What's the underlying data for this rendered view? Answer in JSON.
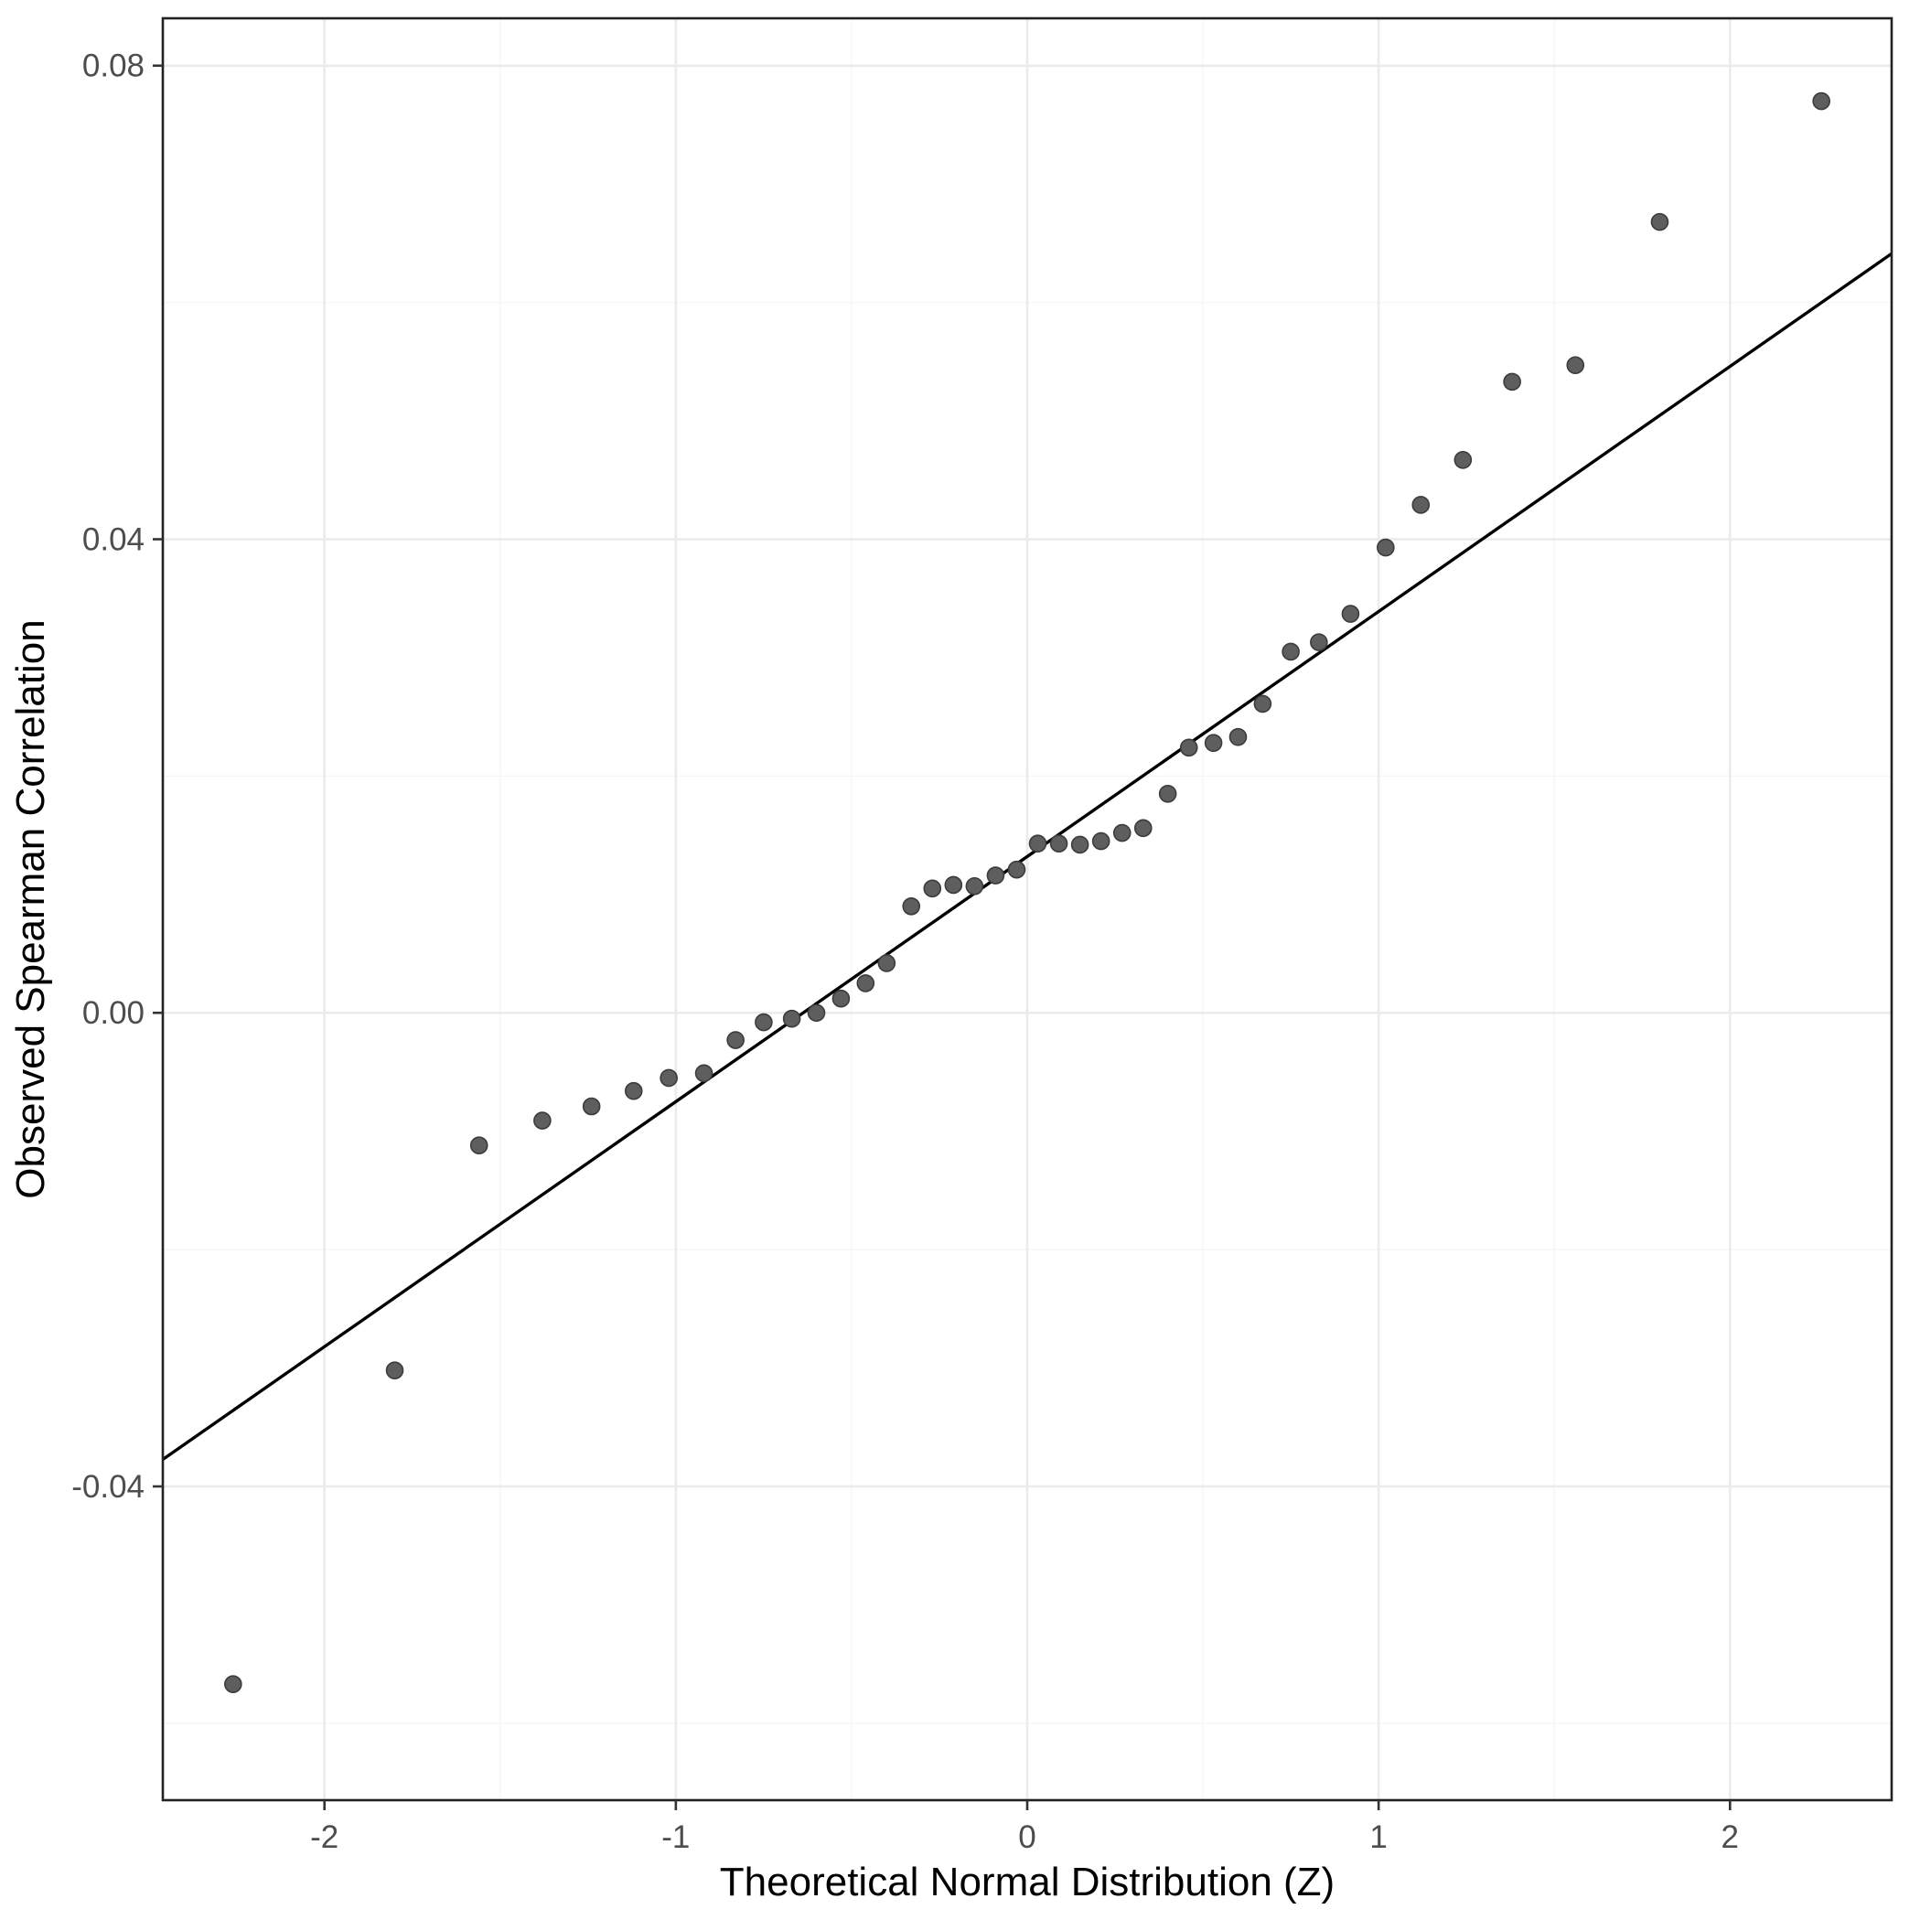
{
  "chart_data": {
    "type": "scatter",
    "title": "",
    "xlabel": "Theoretical Normal Distribution (Z)",
    "ylabel": "Observed Spearman Correlation",
    "xlim": [
      -2.46,
      2.46
    ],
    "ylim": [
      -0.0665,
      0.084
    ],
    "x_ticks": [
      -2,
      -1,
      0,
      1,
      2
    ],
    "x_tick_labels": [
      "-2",
      "-1",
      "0",
      "1",
      "2"
    ],
    "y_ticks": [
      -0.04,
      0.0,
      0.04,
      0.08
    ],
    "y_tick_labels": [
      "-0.04",
      "0.00",
      "0.04",
      "0.08"
    ],
    "x_minor": [
      -1.5,
      -0.5,
      0.5,
      1.5
    ],
    "y_minor": [
      -0.06,
      -0.02,
      0.02,
      0.06
    ],
    "grid": "major+minor",
    "legend": "none",
    "points": [
      [
        -2.26,
        -0.0567
      ],
      [
        -1.8,
        -0.0302
      ],
      [
        -1.56,
        -0.0112
      ],
      [
        -1.38,
        -0.0091
      ],
      [
        -1.24,
        -0.0079
      ],
      [
        -1.12,
        -0.0066
      ],
      [
        -1.02,
        -0.0055
      ],
      [
        -0.92,
        -0.0051
      ],
      [
        -0.83,
        -0.0023
      ],
      [
        -0.75,
        -0.0008
      ],
      [
        -0.67,
        -0.0005
      ],
      [
        -0.6,
        0.0
      ],
      [
        -0.53,
        0.0012
      ],
      [
        -0.46,
        0.0025
      ],
      [
        -0.4,
        0.0042
      ],
      [
        -0.33,
        0.009
      ],
      [
        -0.27,
        0.0105
      ],
      [
        -0.21,
        0.0108
      ],
      [
        -0.15,
        0.0107
      ],
      [
        -0.09,
        0.0116
      ],
      [
        -0.03,
        0.0121
      ],
      [
        0.03,
        0.0143
      ],
      [
        0.09,
        0.0143
      ],
      [
        0.15,
        0.0142
      ],
      [
        0.21,
        0.0145
      ],
      [
        0.27,
        0.0152
      ],
      [
        0.33,
        0.0156
      ],
      [
        0.4,
        0.0185
      ],
      [
        0.46,
        0.0224
      ],
      [
        0.53,
        0.0228
      ],
      [
        0.6,
        0.0233
      ],
      [
        0.67,
        0.0261
      ],
      [
        0.75,
        0.0305
      ],
      [
        0.83,
        0.0313
      ],
      [
        0.92,
        0.0337
      ],
      [
        1.02,
        0.0393
      ],
      [
        1.12,
        0.0429
      ],
      [
        1.24,
        0.0467
      ],
      [
        1.38,
        0.0533
      ],
      [
        1.56,
        0.0547
      ],
      [
        1.8,
        0.0668
      ],
      [
        2.26,
        0.077
      ]
    ],
    "reference_line": {
      "slope": 0.0207,
      "intercept": 0.0132
    },
    "colors": {
      "point_fill": "#5e5e5e",
      "point_stroke": "#3c3c3c",
      "line": "#000000",
      "grid_major": "#ebebeb",
      "grid_minor": "#f6f6f6",
      "panel_border": "#222222",
      "tick": "#333333",
      "tick_text": "#4d4d4d",
      "panel_bg": "#ffffff"
    }
  }
}
